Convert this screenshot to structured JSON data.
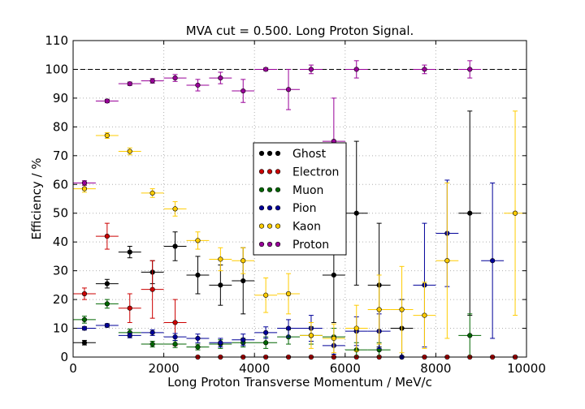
{
  "chart_data": {
    "type": "scatter",
    "title": "MVA cut = 0.500. Long Proton Signal.",
    "xlabel": "Long Proton Transverse Momentum / MeV/c",
    "ylabel": "Efficiency / %",
    "xlim": [
      0,
      10000
    ],
    "ylim": [
      0,
      110
    ],
    "xticks": [
      0,
      2000,
      4000,
      6000,
      8000,
      10000
    ],
    "yticks": [
      0,
      10,
      20,
      30,
      40,
      50,
      60,
      70,
      80,
      90,
      100,
      110
    ],
    "grid": true,
    "reference_line_y": 100,
    "legend_position": "center",
    "x_bin_half_width": 250,
    "series": [
      {
        "name": "Ghost",
        "color": "#000000",
        "points": [
          {
            "x": 250,
            "y": 5,
            "yerr": 0.8
          },
          {
            "x": 750,
            "y": 25.5,
            "yerr": 1.5
          },
          {
            "x": 1250,
            "y": 36.5,
            "yerr": 2
          },
          {
            "x": 1750,
            "y": 29.5,
            "yerr": 4
          },
          {
            "x": 2250,
            "y": 38.5,
            "yerr": 5
          },
          {
            "x": 2750,
            "y": 28.5,
            "yerr": 6.5
          },
          {
            "x": 3250,
            "y": 25,
            "yerr": 7
          },
          {
            "x": 3750,
            "y": 26.5,
            "yerr": 11.5
          },
          {
            "x": 5750,
            "y": 28.5,
            "yerr": 16.5
          },
          {
            "x": 6250,
            "y": 50,
            "yerr": 25
          },
          {
            "x": 6750,
            "y": 25,
            "yerr": 21.5
          },
          {
            "x": 7250,
            "y": 10,
            "yerr": 10
          },
          {
            "x": 8750,
            "y": 50,
            "yerr": 35.5
          },
          {
            "x": 9750,
            "y": 0,
            "yerr": 0
          }
        ]
      },
      {
        "name": "Electron",
        "color": "#cc0000",
        "points": [
          {
            "x": 250,
            "y": 22,
            "yerr": 2
          },
          {
            "x": 750,
            "y": 42,
            "yerr": 4.5
          },
          {
            "x": 1250,
            "y": 17,
            "yerr": 5
          },
          {
            "x": 1750,
            "y": 23.5,
            "yerr": 10
          },
          {
            "x": 2250,
            "y": 12,
            "yerr": 8
          },
          {
            "x": 2750,
            "y": 0,
            "yerr": 0
          },
          {
            "x": 3250,
            "y": 0,
            "yerr": 0
          },
          {
            "x": 3750,
            "y": 0,
            "yerr": 0
          },
          {
            "x": 4250,
            "y": 0,
            "yerr": 0
          },
          {
            "x": 4750,
            "y": 0,
            "yerr": 0
          },
          {
            "x": 5250,
            "y": 0,
            "yerr": 0
          },
          {
            "x": 5750,
            "y": 0,
            "yerr": 0
          },
          {
            "x": 6250,
            "y": 0,
            "yerr": 0
          },
          {
            "x": 6750,
            "y": 0,
            "yerr": 0
          },
          {
            "x": 7250,
            "y": 0,
            "yerr": 0
          },
          {
            "x": 7750,
            "y": 0,
            "yerr": 0
          },
          {
            "x": 8250,
            "y": 0,
            "yerr": 0
          },
          {
            "x": 8750,
            "y": 0,
            "yerr": 0
          },
          {
            "x": 9250,
            "y": 0,
            "yerr": 0
          },
          {
            "x": 9750,
            "y": 0,
            "yerr": 0
          }
        ]
      },
      {
        "name": "Muon",
        "color": "#006600",
        "points": [
          {
            "x": 250,
            "y": 13,
            "yerr": 1.2
          },
          {
            "x": 750,
            "y": 18.5,
            "yerr": 1.5
          },
          {
            "x": 1250,
            "y": 8.5,
            "yerr": 1.2
          },
          {
            "x": 1750,
            "y": 4.5,
            "yerr": 1
          },
          {
            "x": 2250,
            "y": 4.5,
            "yerr": 1.2
          },
          {
            "x": 2750,
            "y": 3.5,
            "yerr": 1
          },
          {
            "x": 3250,
            "y": 4.5,
            "yerr": 1.5
          },
          {
            "x": 3750,
            "y": 5,
            "yerr": 1.5
          },
          {
            "x": 4250,
            "y": 5,
            "yerr": 2
          },
          {
            "x": 4750,
            "y": 7,
            "yerr": 2.5
          },
          {
            "x": 5250,
            "y": 7.5,
            "yerr": 3
          },
          {
            "x": 5750,
            "y": 7,
            "yerr": 3
          },
          {
            "x": 6250,
            "y": 2.5,
            "yerr": 2.5
          },
          {
            "x": 6750,
            "y": 2.5,
            "yerr": 2.5
          },
          {
            "x": 8750,
            "y": 7.5,
            "yerr": 7.5
          }
        ]
      },
      {
        "name": "Pion",
        "color": "#000099",
        "points": [
          {
            "x": 250,
            "y": 10,
            "yerr": 0.6
          },
          {
            "x": 750,
            "y": 11,
            "yerr": 0.6
          },
          {
            "x": 1250,
            "y": 7.5,
            "yerr": 0.8
          },
          {
            "x": 1750,
            "y": 8.5,
            "yerr": 1
          },
          {
            "x": 2250,
            "y": 7,
            "yerr": 1.2
          },
          {
            "x": 2750,
            "y": 6.5,
            "yerr": 1.5
          },
          {
            "x": 3250,
            "y": 5,
            "yerr": 1.5
          },
          {
            "x": 3750,
            "y": 6,
            "yerr": 2
          },
          {
            "x": 4250,
            "y": 8.5,
            "yerr": 2
          },
          {
            "x": 4750,
            "y": 10,
            "yerr": 3
          },
          {
            "x": 5250,
            "y": 10,
            "yerr": 4.5
          },
          {
            "x": 5750,
            "y": 4,
            "yerr": 3
          },
          {
            "x": 6250,
            "y": 9,
            "yerr": 5
          },
          {
            "x": 6750,
            "y": 9,
            "yerr": 6
          },
          {
            "x": 7250,
            "y": 0,
            "yerr": 0
          },
          {
            "x": 7750,
            "y": 25,
            "yerr": 21.5
          },
          {
            "x": 8250,
            "y": 43,
            "yerr": 18.5
          },
          {
            "x": 9250,
            "y": 33.5,
            "yerr": 27
          }
        ]
      },
      {
        "name": "Kaon",
        "color": "#ffcc00",
        "points": [
          {
            "x": 250,
            "y": 58.5,
            "yerr": 1.2
          },
          {
            "x": 750,
            "y": 77,
            "yerr": 1
          },
          {
            "x": 1250,
            "y": 71.5,
            "yerr": 1.2
          },
          {
            "x": 1750,
            "y": 57,
            "yerr": 1.5
          },
          {
            "x": 2250,
            "y": 51.5,
            "yerr": 2.5
          },
          {
            "x": 2750,
            "y": 40.5,
            "yerr": 3
          },
          {
            "x": 3250,
            "y": 34,
            "yerr": 4
          },
          {
            "x": 3750,
            "y": 33.5,
            "yerr": 4.5
          },
          {
            "x": 4250,
            "y": 21.5,
            "yerr": 6
          },
          {
            "x": 4750,
            "y": 22,
            "yerr": 7
          },
          {
            "x": 5250,
            "y": 7.5,
            "yerr": 4.5
          },
          {
            "x": 5750,
            "y": 6.5,
            "yerr": 5
          },
          {
            "x": 6250,
            "y": 10,
            "yerr": 8
          },
          {
            "x": 6750,
            "y": 16.5,
            "yerr": 12
          },
          {
            "x": 7250,
            "y": 16.5,
            "yerr": 15
          },
          {
            "x": 7750,
            "y": 14.5,
            "yerr": 11.5
          },
          {
            "x": 8250,
            "y": 33.5,
            "yerr": 27
          },
          {
            "x": 9750,
            "y": 50,
            "yerr": 35.5
          }
        ]
      },
      {
        "name": "Proton",
        "color": "#990099",
        "points": [
          {
            "x": 250,
            "y": 60.5,
            "yerr": 0.8
          },
          {
            "x": 750,
            "y": 89,
            "yerr": 0.6
          },
          {
            "x": 1250,
            "y": 95,
            "yerr": 0.6
          },
          {
            "x": 1750,
            "y": 96,
            "yerr": 0.8
          },
          {
            "x": 2250,
            "y": 97,
            "yerr": 1.2
          },
          {
            "x": 2750,
            "y": 94.5,
            "yerr": 2
          },
          {
            "x": 3250,
            "y": 97,
            "yerr": 2
          },
          {
            "x": 3750,
            "y": 92.5,
            "yerr": 4
          },
          {
            "x": 4250,
            "y": 100,
            "yerr": 0.5
          },
          {
            "x": 4750,
            "y": 93,
            "yerr": 7
          },
          {
            "x": 5250,
            "y": 100,
            "yerr": 1.5
          },
          {
            "x": 5750,
            "y": 75,
            "yerr": 15
          },
          {
            "x": 6250,
            "y": 100,
            "yerr": 3
          },
          {
            "x": 7750,
            "y": 100,
            "yerr": 1.5
          },
          {
            "x": 8750,
            "y": 100,
            "yerr": 3
          }
        ]
      }
    ]
  }
}
